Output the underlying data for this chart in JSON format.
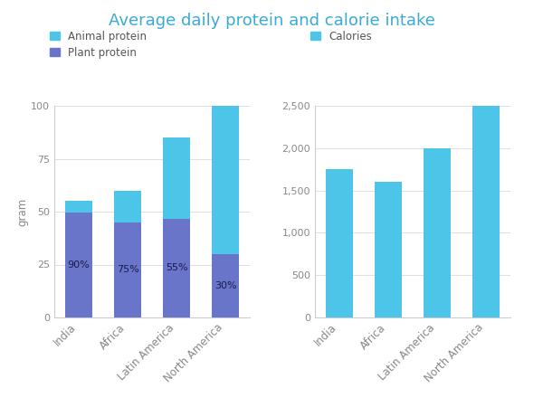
{
  "title": "Average daily protein and calorie intake",
  "categories": [
    "India",
    "Africa",
    "Latin America",
    "North America"
  ],
  "total_protein": [
    55,
    60,
    85,
    100
  ],
  "plant_protein_pct": [
    90,
    75,
    55,
    30
  ],
  "calories": [
    1750,
    1600,
    2000,
    2500
  ],
  "animal_protein_color": "#4DC5E8",
  "plant_protein_color": "#6875C8",
  "calories_color": "#4DC5E8",
  "title_color": "#3BAAD4",
  "pct_labels": [
    "90%",
    "75%",
    "55%",
    "30%"
  ],
  "left_ylabel": "gram",
  "left_ylim": [
    0,
    100
  ],
  "left_yticks": [
    0,
    25,
    50,
    75,
    100
  ],
  "right_ylim": [
    0,
    2500
  ],
  "right_yticks": [
    0,
    500,
    1000,
    1500,
    2000,
    2500
  ],
  "right_yticklabels": [
    "0",
    "500",
    "1,000",
    "1,500",
    "2,000",
    "2,500"
  ],
  "title_fontsize": 13,
  "axis_label_fontsize": 8.5,
  "tick_fontsize": 8,
  "legend_fontsize": 8.5,
  "pct_fontsize": 8,
  "background_color": "#ffffff",
  "grid_color": "#e0e0e0"
}
